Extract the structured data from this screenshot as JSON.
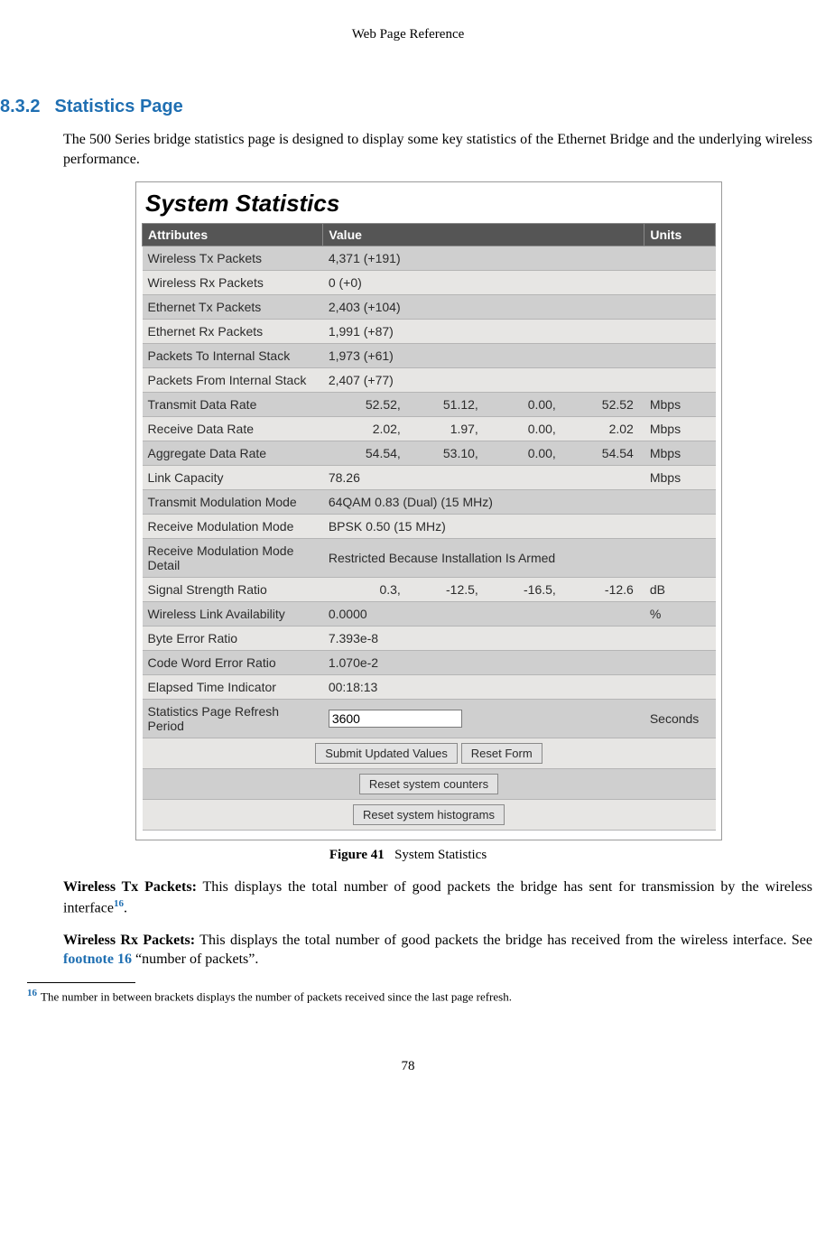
{
  "running_head": "Web Page Reference",
  "section": {
    "number": "8.3.2",
    "title": "Statistics Page"
  },
  "intro": "The 500 Series bridge statistics page is designed to display some key statistics of the Ethernet Bridge and the underlying wireless performance.",
  "panel_title": "System Statistics",
  "headers": {
    "attr": "Attributes",
    "value": "Value",
    "units": "Units"
  },
  "rows": [
    {
      "attr": "Wireless Tx Packets",
      "value": "4,371 (+191)",
      "units": ""
    },
    {
      "attr": "Wireless Rx Packets",
      "value": "0 (+0)",
      "units": ""
    },
    {
      "attr": "Ethernet Tx Packets",
      "value": "2,403 (+104)",
      "units": ""
    },
    {
      "attr": "Ethernet Rx Packets",
      "value": "1,991 (+87)",
      "units": ""
    },
    {
      "attr": "Packets To Internal Stack",
      "value": "1,973 (+61)",
      "units": ""
    },
    {
      "attr": "Packets From Internal Stack",
      "value": "2,407 (+77)",
      "units": ""
    },
    {
      "attr": "Transmit Data Rate",
      "quad": [
        "52.52,",
        "51.12,",
        "0.00,",
        "52.52"
      ],
      "units": "Mbps"
    },
    {
      "attr": "Receive Data Rate",
      "quad": [
        "2.02,",
        "1.97,",
        "0.00,",
        "2.02"
      ],
      "units": "Mbps"
    },
    {
      "attr": "Aggregate Data Rate",
      "quad": [
        "54.54,",
        "53.10,",
        "0.00,",
        "54.54"
      ],
      "units": "Mbps"
    },
    {
      "attr": "Link Capacity",
      "value": "78.26",
      "units": "Mbps"
    },
    {
      "attr": "Transmit Modulation Mode",
      "value": "64QAM 0.83 (Dual) (15 MHz)",
      "units": ""
    },
    {
      "attr": "Receive Modulation Mode",
      "value": "BPSK 0.50 (15 MHz)",
      "units": ""
    },
    {
      "attr": "Receive Modulation Mode Detail",
      "value": "Restricted Because Installation Is Armed",
      "units": ""
    },
    {
      "attr": "Signal Strength Ratio",
      "quad": [
        "0.3,",
        "-12.5,",
        "-16.5,",
        "-12.6"
      ],
      "units": "dB"
    },
    {
      "attr": "Wireless Link Availability",
      "value": "0.0000",
      "units": "%"
    },
    {
      "attr": "Byte Error Ratio",
      "value": "7.393e-8",
      "units": ""
    },
    {
      "attr": "Code Word Error Ratio",
      "value": "1.070e-2",
      "units": ""
    },
    {
      "attr": "Elapsed Time Indicator",
      "value": "00:18:13",
      "units": ""
    }
  ],
  "refresh_row": {
    "attr": "Statistics Page Refresh Period",
    "value": "3600",
    "units": "Seconds"
  },
  "buttons": {
    "submit": "Submit Updated Values",
    "reset_form": "Reset Form",
    "reset_counters": "Reset system counters",
    "reset_histograms": "Reset system histograms"
  },
  "caption": {
    "label": "Figure 41",
    "text": "System Statistics"
  },
  "desc_tx": {
    "term": "Wireless Tx Packets:",
    "text_a": " This displays the total number of good packets the bridge has sent for transmission by the wireless interface",
    "sup": "16",
    "text_b": "."
  },
  "desc_rx": {
    "term": "Wireless Rx Packets:",
    "text_a": " This displays the total number of good packets the bridge has received from the wireless interface. See ",
    "ref": "footnote 16",
    "text_b": " “number of packets”."
  },
  "footnote": {
    "num": "16",
    "text": "The number in between brackets displays the number of packets received since the last page refresh."
  },
  "page_number": "78",
  "colors": {
    "heading": "#1f6fb2",
    "th_bg": "#555555",
    "row_odd": "#cfcfcf",
    "row_even": "#e7e6e4"
  }
}
